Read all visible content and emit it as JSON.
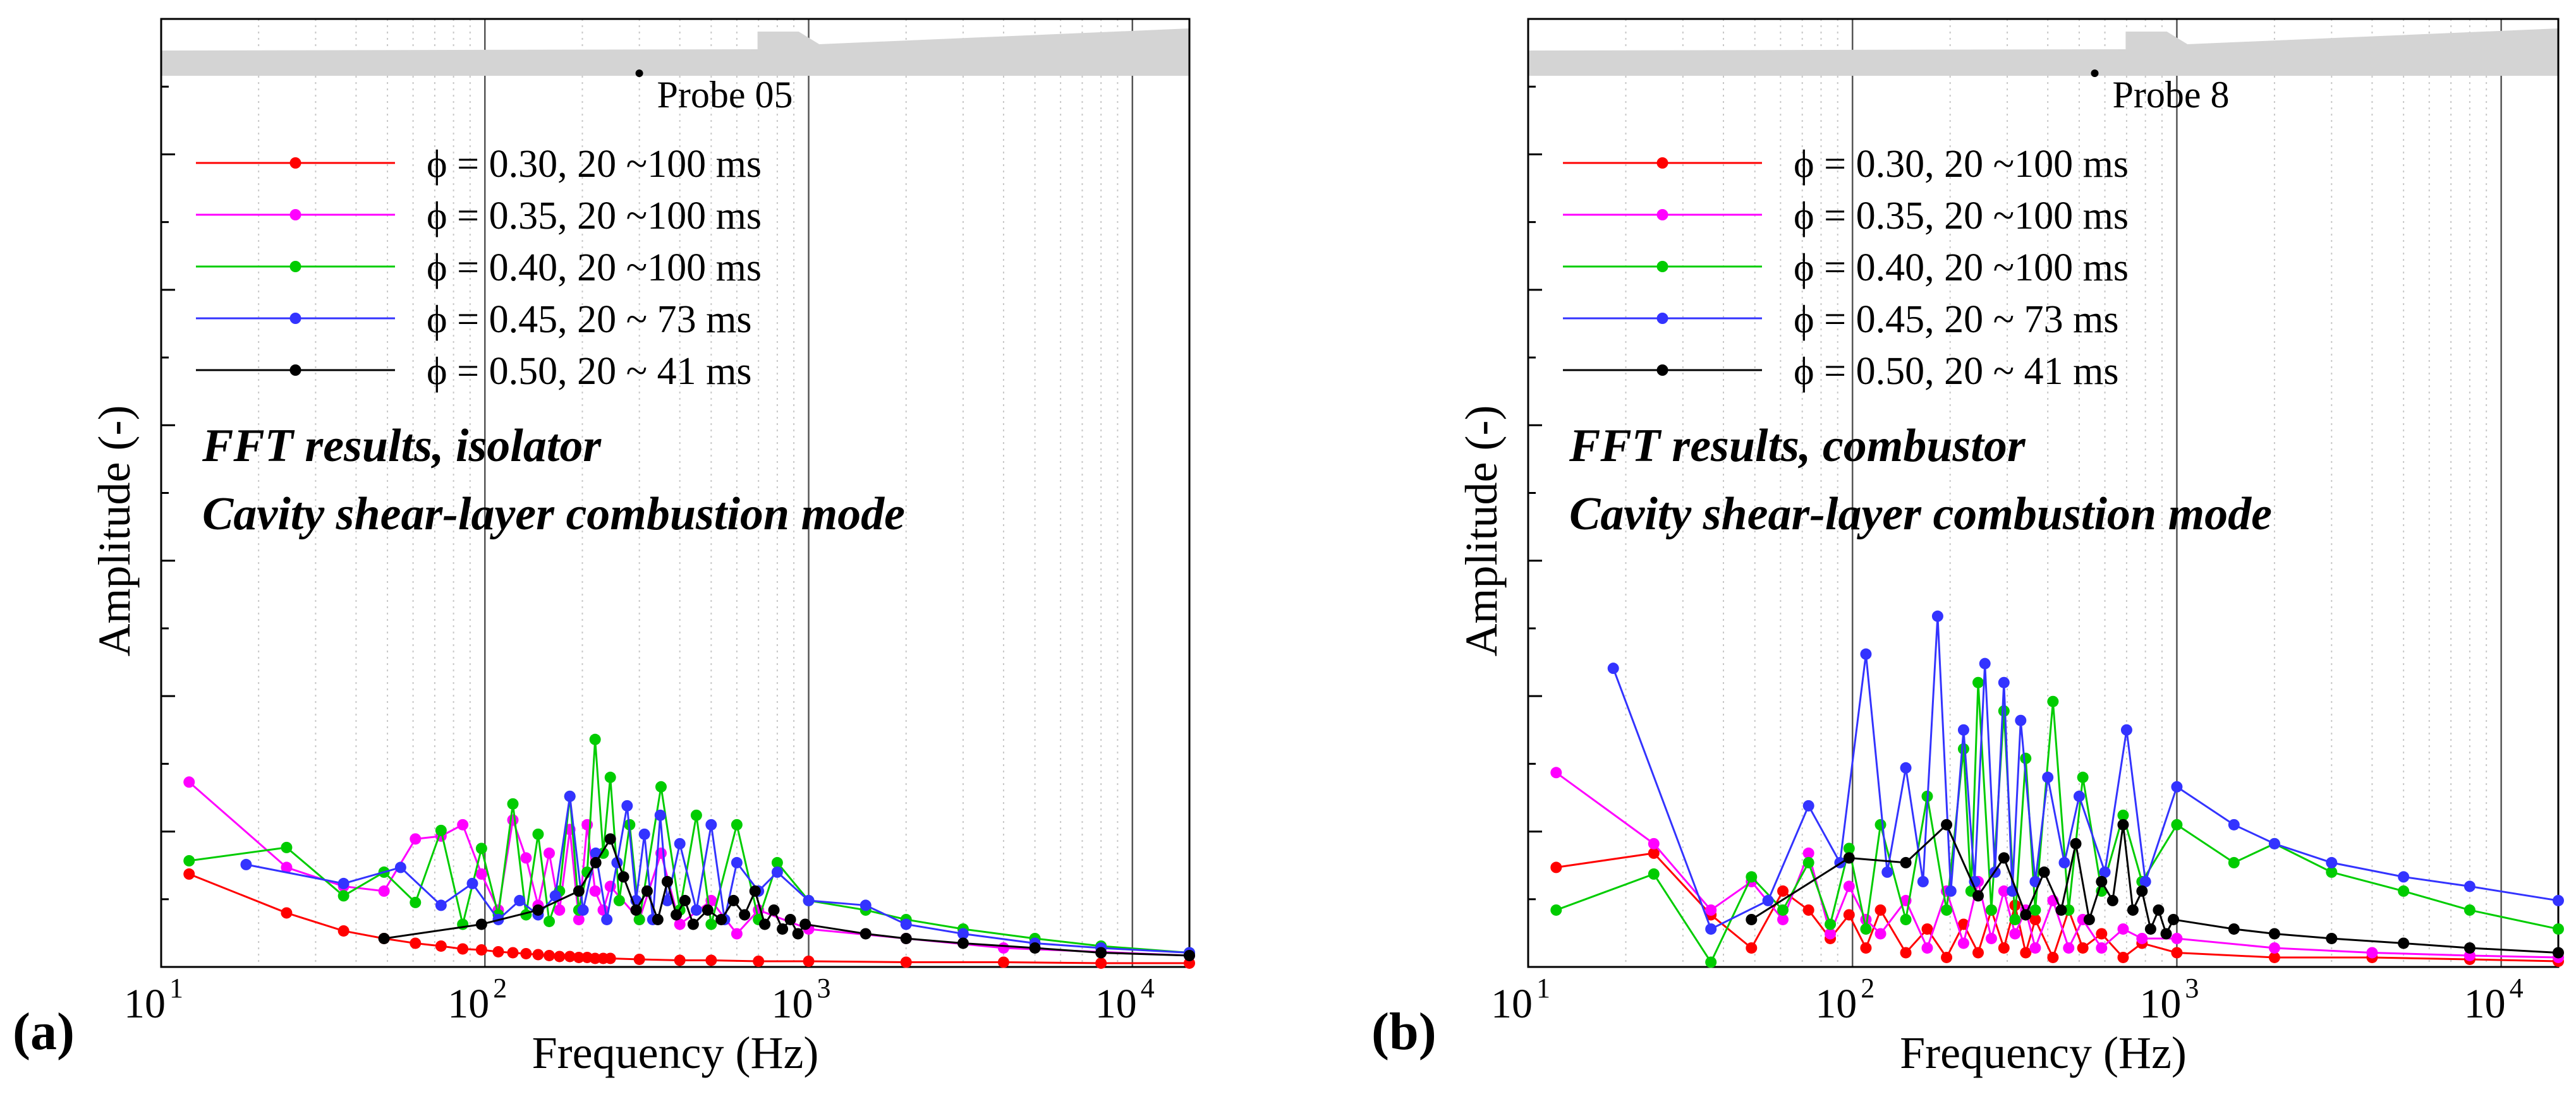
{
  "figure": {
    "panel_labels": [
      "(a)",
      "(b)"
    ]
  },
  "chart_data": [
    {
      "type": "line",
      "panel": "(a)",
      "xscale": "log",
      "xlim": [
        10,
        15000
      ],
      "ylim": [
        0,
        1
      ],
      "xlabel": "Frequency (Hz)",
      "ylabel": "Amplitude (-)",
      "xticks": [
        {
          "base": "10",
          "exp": "1"
        },
        {
          "base": "10",
          "exp": "2"
        },
        {
          "base": "10",
          "exp": "3"
        },
        {
          "base": "10",
          "exp": "4"
        }
      ],
      "probe_label": "Probe 05",
      "annotation": [
        "FFT results, isolator",
        "Cavity shear-layer combustion mode"
      ],
      "grid": "vertical, log decades",
      "legend_position": "top-left",
      "series": [
        {
          "name": "ϕ = 0.30, 20 ~100 ms",
          "color": "#ff0000",
          "x": [
            12.2,
            24.4,
            36.6,
            48.8,
            61,
            73.2,
            85.4,
            97.6,
            110,
            122,
            134,
            146,
            158,
            170,
            183,
            195,
            207,
            219,
            232,
            244,
            300,
            400,
            500,
            700,
            1000,
            2000,
            4000,
            8000,
            15000
          ],
          "y": [
            0.098,
            0.057,
            0.038,
            0.03,
            0.025,
            0.022,
            0.019,
            0.018,
            0.016,
            0.015,
            0.014,
            0.013,
            0.012,
            0.011,
            0.011,
            0.01,
            0.01,
            0.009,
            0.009,
            0.009,
            0.008,
            0.007,
            0.007,
            0.006,
            0.006,
            0.005,
            0.005,
            0.004,
            0.004
          ]
        },
        {
          "name": "ϕ = 0.35, 20 ~100 ms",
          "color": "#ff00ff",
          "x": [
            12.2,
            24.4,
            36.6,
            48.8,
            61,
            73.2,
            85.4,
            97.6,
            110,
            122,
            134,
            146,
            158,
            170,
            183,
            195,
            207,
            219,
            232,
            244,
            300,
            350,
            400,
            500,
            600,
            700,
            1000,
            2000,
            4000,
            15000
          ],
          "y": [
            0.195,
            0.105,
            0.085,
            0.08,
            0.135,
            0.138,
            0.15,
            0.098,
            0.06,
            0.155,
            0.115,
            0.065,
            0.12,
            0.06,
            0.145,
            0.05,
            0.15,
            0.08,
            0.06,
            0.085,
            0.05,
            0.12,
            0.045,
            0.07,
            0.035,
            0.06,
            0.04,
            0.03,
            0.02,
            0.012
          ]
        },
        {
          "name": "ϕ = 0.40, 20 ~100 ms",
          "color": "#00cc00",
          "x": [
            12.2,
            24.4,
            36.6,
            48.8,
            61,
            73.2,
            85.4,
            97.6,
            110,
            122,
            134,
            146,
            158,
            170,
            183,
            195,
            207,
            219,
            232,
            244,
            260,
            280,
            300,
            350,
            400,
            450,
            500,
            600,
            700,
            800,
            1000,
            1500,
            2000,
            3000,
            5000,
            8000,
            15000
          ],
          "y": [
            0.112,
            0.126,
            0.075,
            0.1,
            0.068,
            0.144,
            0.045,
            0.125,
            0.055,
            0.172,
            0.055,
            0.14,
            0.048,
            0.08,
            0.18,
            0.06,
            0.1,
            0.24,
            0.12,
            0.2,
            0.07,
            0.15,
            0.05,
            0.19,
            0.06,
            0.16,
            0.045,
            0.15,
            0.05,
            0.11,
            0.07,
            0.06,
            0.05,
            0.04,
            0.03,
            0.022,
            0.015
          ]
        },
        {
          "name": "ϕ = 0.45, 20 ~  73 ms",
          "color": "#3333ff",
          "x": [
            18.3,
            36.6,
            54.9,
            73.2,
            91.5,
            110,
            128,
            146,
            165,
            183,
            201,
            220,
            238,
            256,
            275,
            293,
            311,
            330,
            348,
            366,
            400,
            450,
            500,
            550,
            600,
            700,
            800,
            1000,
            1500,
            2000,
            3000,
            5000,
            8000,
            15000
          ],
          "y": [
            0.108,
            0.088,
            0.105,
            0.065,
            0.088,
            0.05,
            0.07,
            0.055,
            0.075,
            0.18,
            0.06,
            0.12,
            0.05,
            0.11,
            0.17,
            0.07,
            0.14,
            0.05,
            0.16,
            0.07,
            0.13,
            0.06,
            0.15,
            0.05,
            0.11,
            0.08,
            0.1,
            0.07,
            0.065,
            0.045,
            0.035,
            0.025,
            0.02,
            0.015
          ]
        },
        {
          "name": "ϕ = 0.50, 20 ~  41 ms",
          "color": "#000000",
          "x": [
            48.8,
            97.6,
            146,
            195,
            220,
            244,
            268,
            293,
            317,
            342,
            366,
            390,
            415,
            440,
            488,
            537,
            586,
            634,
            683,
            732,
            781,
            830,
            878,
            927,
            976,
            1500,
            2000,
            3000,
            5000,
            8000,
            15000
          ],
          "y": [
            0.03,
            0.045,
            0.06,
            0.08,
            0.11,
            0.135,
            0.095,
            0.06,
            0.08,
            0.05,
            0.09,
            0.055,
            0.07,
            0.045,
            0.06,
            0.05,
            0.07,
            0.055,
            0.08,
            0.045,
            0.06,
            0.04,
            0.05,
            0.035,
            0.045,
            0.035,
            0.03,
            0.025,
            0.02,
            0.015,
            0.012
          ]
        }
      ]
    },
    {
      "type": "line",
      "panel": "(b)",
      "xscale": "log",
      "xlim": [
        10,
        15000
      ],
      "ylim": [
        0,
        1
      ],
      "xlabel": "Frequency (Hz)",
      "ylabel": "Amplitude (-)",
      "xticks": [
        {
          "base": "10",
          "exp": "1"
        },
        {
          "base": "10",
          "exp": "2"
        },
        {
          "base": "10",
          "exp": "3"
        },
        {
          "base": "10",
          "exp": "4"
        }
      ],
      "probe_label": "Probe 8",
      "annotation": [
        "FFT results, combustor",
        "Cavity shear-layer combustion mode"
      ],
      "grid": "vertical, log decades",
      "legend_position": "top-left",
      "series": [
        {
          "name": "ϕ = 0.30, 20 ~100 ms",
          "color": "#ff0000",
          "x": [
            12.2,
            24.4,
            36.6,
            48.8,
            61,
            73.2,
            85.4,
            97.6,
            110,
            122,
            146,
            170,
            195,
            220,
            244,
            268,
            293,
            317,
            342,
            366,
            415,
            464,
            513,
            586,
            683,
            781,
            1000,
            2000,
            4000,
            8000,
            15000
          ],
          "y": [
            0.105,
            0.12,
            0.055,
            0.02,
            0.08,
            0.06,
            0.03,
            0.055,
            0.02,
            0.06,
            0.015,
            0.04,
            0.01,
            0.045,
            0.015,
            0.06,
            0.02,
            0.065,
            0.015,
            0.05,
            0.01,
            0.06,
            0.02,
            0.035,
            0.01,
            0.025,
            0.015,
            0.01,
            0.01,
            0.008,
            0.006
          ]
        },
        {
          "name": "ϕ = 0.35, 20 ~100 ms",
          "color": "#ff00ff",
          "x": [
            12.2,
            24.4,
            36.6,
            48.8,
            61,
            73.2,
            85.4,
            97.6,
            110,
            122,
            146,
            170,
            195,
            220,
            244,
            268,
            293,
            317,
            342,
            366,
            415,
            464,
            513,
            586,
            683,
            781,
            1000,
            2000,
            4000,
            8000,
            15000
          ],
          "y": [
            0.205,
            0.13,
            0.06,
            0.09,
            0.05,
            0.12,
            0.035,
            0.085,
            0.05,
            0.035,
            0.07,
            0.02,
            0.08,
            0.025,
            0.09,
            0.03,
            0.08,
            0.035,
            0.06,
            0.02,
            0.07,
            0.02,
            0.05,
            0.02,
            0.04,
            0.03,
            0.03,
            0.02,
            0.015,
            0.012,
            0.01
          ]
        },
        {
          "name": "ϕ = 0.40, 20 ~100 ms",
          "color": "#00cc00",
          "x": [
            12.2,
            24.4,
            36.6,
            48.8,
            61,
            73.2,
            85.4,
            97.6,
            110,
            122,
            146,
            170,
            195,
            220,
            232,
            244,
            268,
            293,
            317,
            342,
            366,
            415,
            464,
            513,
            586,
            683,
            781,
            1000,
            1500,
            2000,
            3000,
            5000,
            8000,
            15000
          ],
          "y": [
            0.06,
            0.098,
            0.005,
            0.095,
            0.06,
            0.11,
            0.045,
            0.125,
            0.04,
            0.15,
            0.05,
            0.18,
            0.06,
            0.23,
            0.08,
            0.3,
            0.06,
            0.27,
            0.05,
            0.22,
            0.06,
            0.28,
            0.06,
            0.2,
            0.08,
            0.16,
            0.09,
            0.15,
            0.11,
            0.13,
            0.1,
            0.08,
            0.06,
            0.04
          ]
        },
        {
          "name": "ϕ = 0.45, 20 ~  73 ms",
          "color": "#3333ff",
          "x": [
            18.3,
            36.6,
            54.9,
            73.2,
            91.5,
            110,
            128,
            146,
            165,
            183,
            201,
            220,
            238,
            256,
            275,
            293,
            311,
            330,
            366,
            400,
            450,
            500,
            600,
            700,
            800,
            1000,
            1500,
            2000,
            3000,
            5000,
            8000,
            15000
          ],
          "y": [
            0.315,
            0.04,
            0.07,
            0.17,
            0.11,
            0.33,
            0.1,
            0.21,
            0.09,
            0.37,
            0.08,
            0.25,
            0.09,
            0.32,
            0.1,
            0.3,
            0.08,
            0.26,
            0.09,
            0.2,
            0.11,
            0.18,
            0.1,
            0.25,
            0.09,
            0.19,
            0.15,
            0.13,
            0.11,
            0.095,
            0.085,
            0.07
          ]
        },
        {
          "name": "ϕ = 0.50, 20 ~  41 ms",
          "color": "#000000",
          "x": [
            48.8,
            97.6,
            146,
            195,
            244,
            293,
            342,
            390,
            440,
            488,
            537,
            586,
            634,
            683,
            732,
            781,
            830,
            878,
            927,
            976,
            1500,
            2000,
            3000,
            5000,
            8000,
            15000
          ],
          "y": [
            0.05,
            0.115,
            0.11,
            0.15,
            0.075,
            0.115,
            0.055,
            0.1,
            0.06,
            0.13,
            0.05,
            0.09,
            0.07,
            0.15,
            0.06,
            0.08,
            0.04,
            0.06,
            0.035,
            0.05,
            0.04,
            0.035,
            0.03,
            0.025,
            0.02,
            0.015
          ]
        }
      ]
    }
  ]
}
